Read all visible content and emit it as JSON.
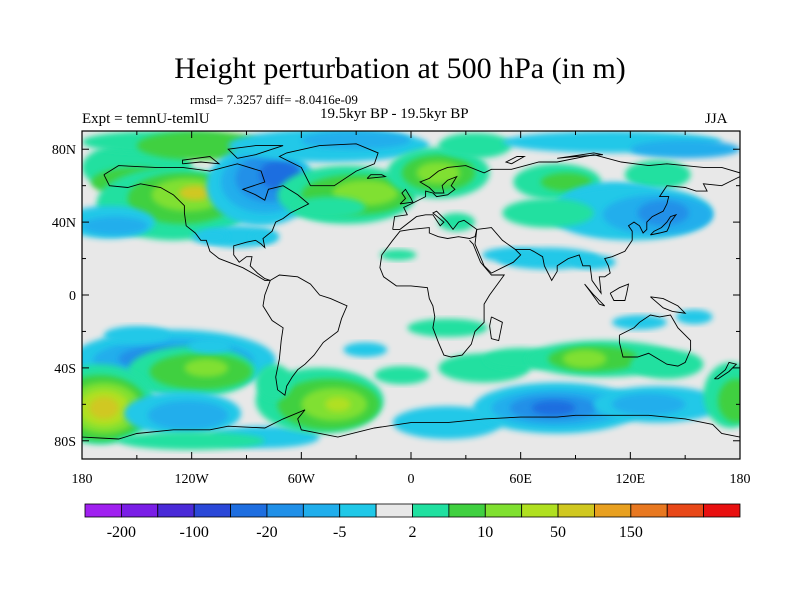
{
  "chart_data": {
    "type": "contour-map",
    "title": "Height perturbation at 500 hPa (in m)",
    "stats_line": "rmsd= 7.3257 diff= -8.0416e-09",
    "left_label": "Expt = temnU-temlU",
    "center_label": "19.5kyr BP - 19.5kyr BP",
    "right_label": "JJA",
    "x_tick_labels": [
      "180",
      "120W",
      "60W",
      "0",
      "60E",
      "120E",
      "180"
    ],
    "y_tick_labels": [
      "80N",
      "40N",
      "0",
      "40S",
      "80S"
    ],
    "xlim": [
      -180,
      180
    ],
    "ylim": [
      -90,
      90
    ],
    "colorbar_labels": [
      "-200",
      "-100",
      "-20",
      "-5",
      "2",
      "10",
      "50",
      "150"
    ],
    "colorbar_colors": [
      "#a020f0",
      "#7a1ee6",
      "#4a2ad8",
      "#2a48d8",
      "#1e6ee0",
      "#2090e8",
      "#20aeec",
      "#20c8e8",
      "#e8e8e8",
      "#20e0a0",
      "#40d040",
      "#80e030",
      "#b0e020",
      "#d0c820",
      "#e8a020",
      "#e87820",
      "#e84818",
      "#e81010"
    ],
    "field_colors": {
      "zero": "#e8e8e8",
      "neg_weak": "#20c8e8",
      "neg_mid": "#20aeec",
      "neg_strong": "#2090e8",
      "neg_stronger": "#1e6ee0",
      "pos_weak": "#20e0a0",
      "pos_mid": "#40d040",
      "pos_strong": "#80e030",
      "pos_stronger": "#b0e020",
      "pos_max": "#d0c820"
    }
  }
}
